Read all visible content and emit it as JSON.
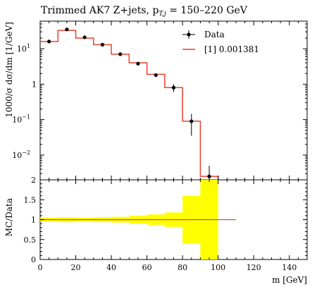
{
  "title": "Trimmed AK7 Z+jets, p",
  "title_sub": "T,j",
  "title_tail": " = 150–220 GeV",
  "legend": {
    "data_label": "Data",
    "mc_label": "[1] 0.001381"
  },
  "colors": {
    "mc_line": "#e8412b",
    "band_fill": "#ffff00",
    "data_marker": "#000000"
  },
  "top_ylabel": "1000/σ dσ/dm [1/GeV]",
  "bottom_ylabel": "MC/Data",
  "xlabel": "m [GeV]",
  "chart_data": [
    {
      "type": "line",
      "panel": "distribution",
      "yscale": "log",
      "ylim": [
        0.002,
        60
      ],
      "xlim": [
        0,
        150
      ],
      "ytick_labels": [
        "10^-2",
        "10^-1",
        "1",
        "10^1"
      ],
      "ytick_values": [
        0.01,
        0.1,
        1,
        10
      ],
      "series": [
        {
          "name": "Data",
          "x": [
            5,
            15,
            25,
            35,
            45,
            55,
            65,
            75,
            85,
            95
          ],
          "y": [
            16,
            35,
            21,
            13,
            7,
            3.8,
            1.8,
            0.8,
            0.09,
            0.0025
          ],
          "yerr_low": [
            1.2,
            2.0,
            1.5,
            1.0,
            0.6,
            0.35,
            0.2,
            0.2,
            0.055,
            0.0012
          ],
          "yerr_high": [
            1.2,
            2.0,
            1.5,
            1.0,
            0.6,
            0.35,
            0.2,
            0.2,
            0.055,
            0.0025
          ]
        },
        {
          "name": "[1] 0.001381",
          "bin_edges": [
            0,
            10,
            20,
            30,
            40,
            50,
            60,
            70,
            80,
            90,
            100
          ],
          "y": [
            16,
            33,
            20,
            13,
            7,
            4,
            1.9,
            0.8,
            0.09,
            0.0025
          ]
        }
      ]
    },
    {
      "type": "line",
      "panel": "ratio",
      "ylim": [
        0,
        2
      ],
      "xlim": [
        0,
        150
      ],
      "ytick_values": [
        0,
        0.5,
        1,
        1.5,
        2
      ],
      "xtick_values": [
        0,
        20,
        40,
        60,
        80,
        100,
        120,
        140
      ],
      "ratio_line": {
        "x": [
          0,
          110
        ],
        "y": 1.0
      },
      "band": {
        "bin_edges": [
          0,
          10,
          20,
          30,
          40,
          50,
          60,
          70,
          80,
          90,
          100
        ],
        "low": [
          0.95,
          0.94,
          0.95,
          0.94,
          0.93,
          0.9,
          0.87,
          0.82,
          0.4,
          0.0
        ],
        "high": [
          1.05,
          1.06,
          1.05,
          1.06,
          1.07,
          1.1,
          1.13,
          1.18,
          1.6,
          2.0
        ]
      }
    }
  ]
}
